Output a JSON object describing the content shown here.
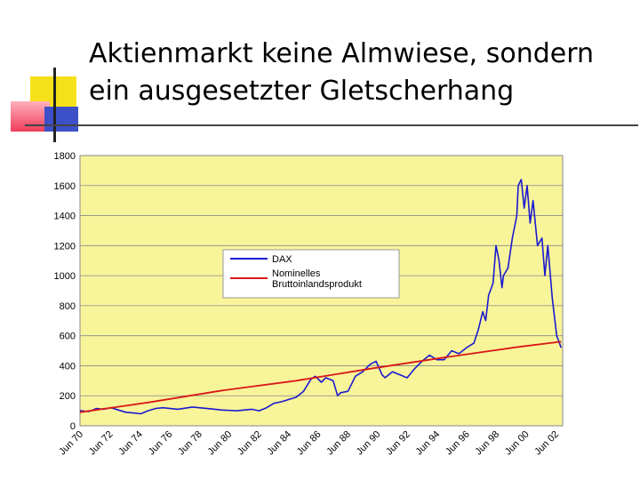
{
  "slide": {
    "title_line1": "Aktienmarkt keine Almwiese, sondern",
    "title_line2": "ein ausgesetzter Gletscherhang"
  },
  "colors": {
    "plot_bg": "#f8f49a",
    "dax": "#1a1ad0",
    "gdp": "#d81818",
    "deco_yellow": "#f6e01a",
    "deco_red": "#f03c5a",
    "deco_blue": "#3c50c8"
  },
  "chart_data": {
    "type": "line",
    "ylim": [
      0,
      1800
    ],
    "y_ticks": [
      "0",
      "200",
      "400",
      "600",
      "800",
      "1000",
      "1200",
      "1400",
      "1600",
      "1800"
    ],
    "x_ticks": [
      "Jun 70",
      "Jun 72",
      "Jun 74",
      "Jun 76",
      "Jun 78",
      "Jun 80",
      "Jun 82",
      "Jun 84",
      "Jun 86",
      "Jun 88",
      "Jun 90",
      "Jun 92",
      "Jun 94",
      "Jun 96",
      "Jun 98",
      "Jun 00",
      "Jun 02"
    ],
    "x_range": [
      1970.4,
      2003.0
    ],
    "grid": true,
    "legend_position": "center-left",
    "series": [
      {
        "name": "DAX",
        "x": [
          1970.4,
          1971.0,
          1971.5,
          1972.0,
          1972.5,
          1973.0,
          1973.5,
          1974.0,
          1974.5,
          1975.0,
          1975.5,
          1976.0,
          1977.0,
          1978.0,
          1979.0,
          1980.0,
          1981.0,
          1982.0,
          1982.5,
          1983.0,
          1983.5,
          1984.0,
          1985.0,
          1985.5,
          1986.0,
          1986.3,
          1986.7,
          1987.0,
          1987.5,
          1987.8,
          1988.0,
          1988.5,
          1989.0,
          1989.5,
          1990.0,
          1990.4,
          1990.8,
          1991.0,
          1991.5,
          1992.0,
          1992.5,
          1993.0,
          1993.5,
          1994.0,
          1994.5,
          1995.0,
          1995.5,
          1996.0,
          1996.5,
          1997.0,
          1997.3,
          1997.6,
          1997.8,
          1998.0,
          1998.3,
          1998.5,
          1998.7,
          1998.9,
          1999.0,
          1999.3,
          1999.6,
          1999.9,
          2000.0,
          2000.2,
          2000.4,
          2000.6,
          2000.8,
          2001.0,
          2001.3,
          2001.6,
          2001.8,
          2002.0,
          2002.3,
          2002.6,
          2002.9
        ],
        "values": [
          100,
          95,
          115,
          110,
          120,
          105,
          90,
          85,
          80,
          100,
          115,
          120,
          110,
          125,
          115,
          105,
          100,
          110,
          100,
          120,
          150,
          160,
          190,
          230,
          310,
          330,
          290,
          320,
          300,
          200,
          220,
          230,
          330,
          360,
          410,
          430,
          340,
          320,
          360,
          340,
          320,
          380,
          430,
          470,
          440,
          440,
          500,
          480,
          520,
          550,
          640,
          760,
          700,
          870,
          950,
          1200,
          1100,
          920,
          1000,
          1050,
          1250,
          1400,
          1600,
          1640,
          1450,
          1600,
          1350,
          1500,
          1200,
          1250,
          1000,
          1200,
          850,
          600,
          520
        ]
      },
      {
        "name": "Nominelles Bruttoinlandsprodukt",
        "x": [
          1970.4,
          1975.0,
          1980.0,
          1985.0,
          1990.0,
          1995.0,
          2000.0,
          2002.9
        ],
        "values": [
          90,
          155,
          235,
          300,
          380,
          455,
          525,
          560
        ]
      }
    ]
  }
}
